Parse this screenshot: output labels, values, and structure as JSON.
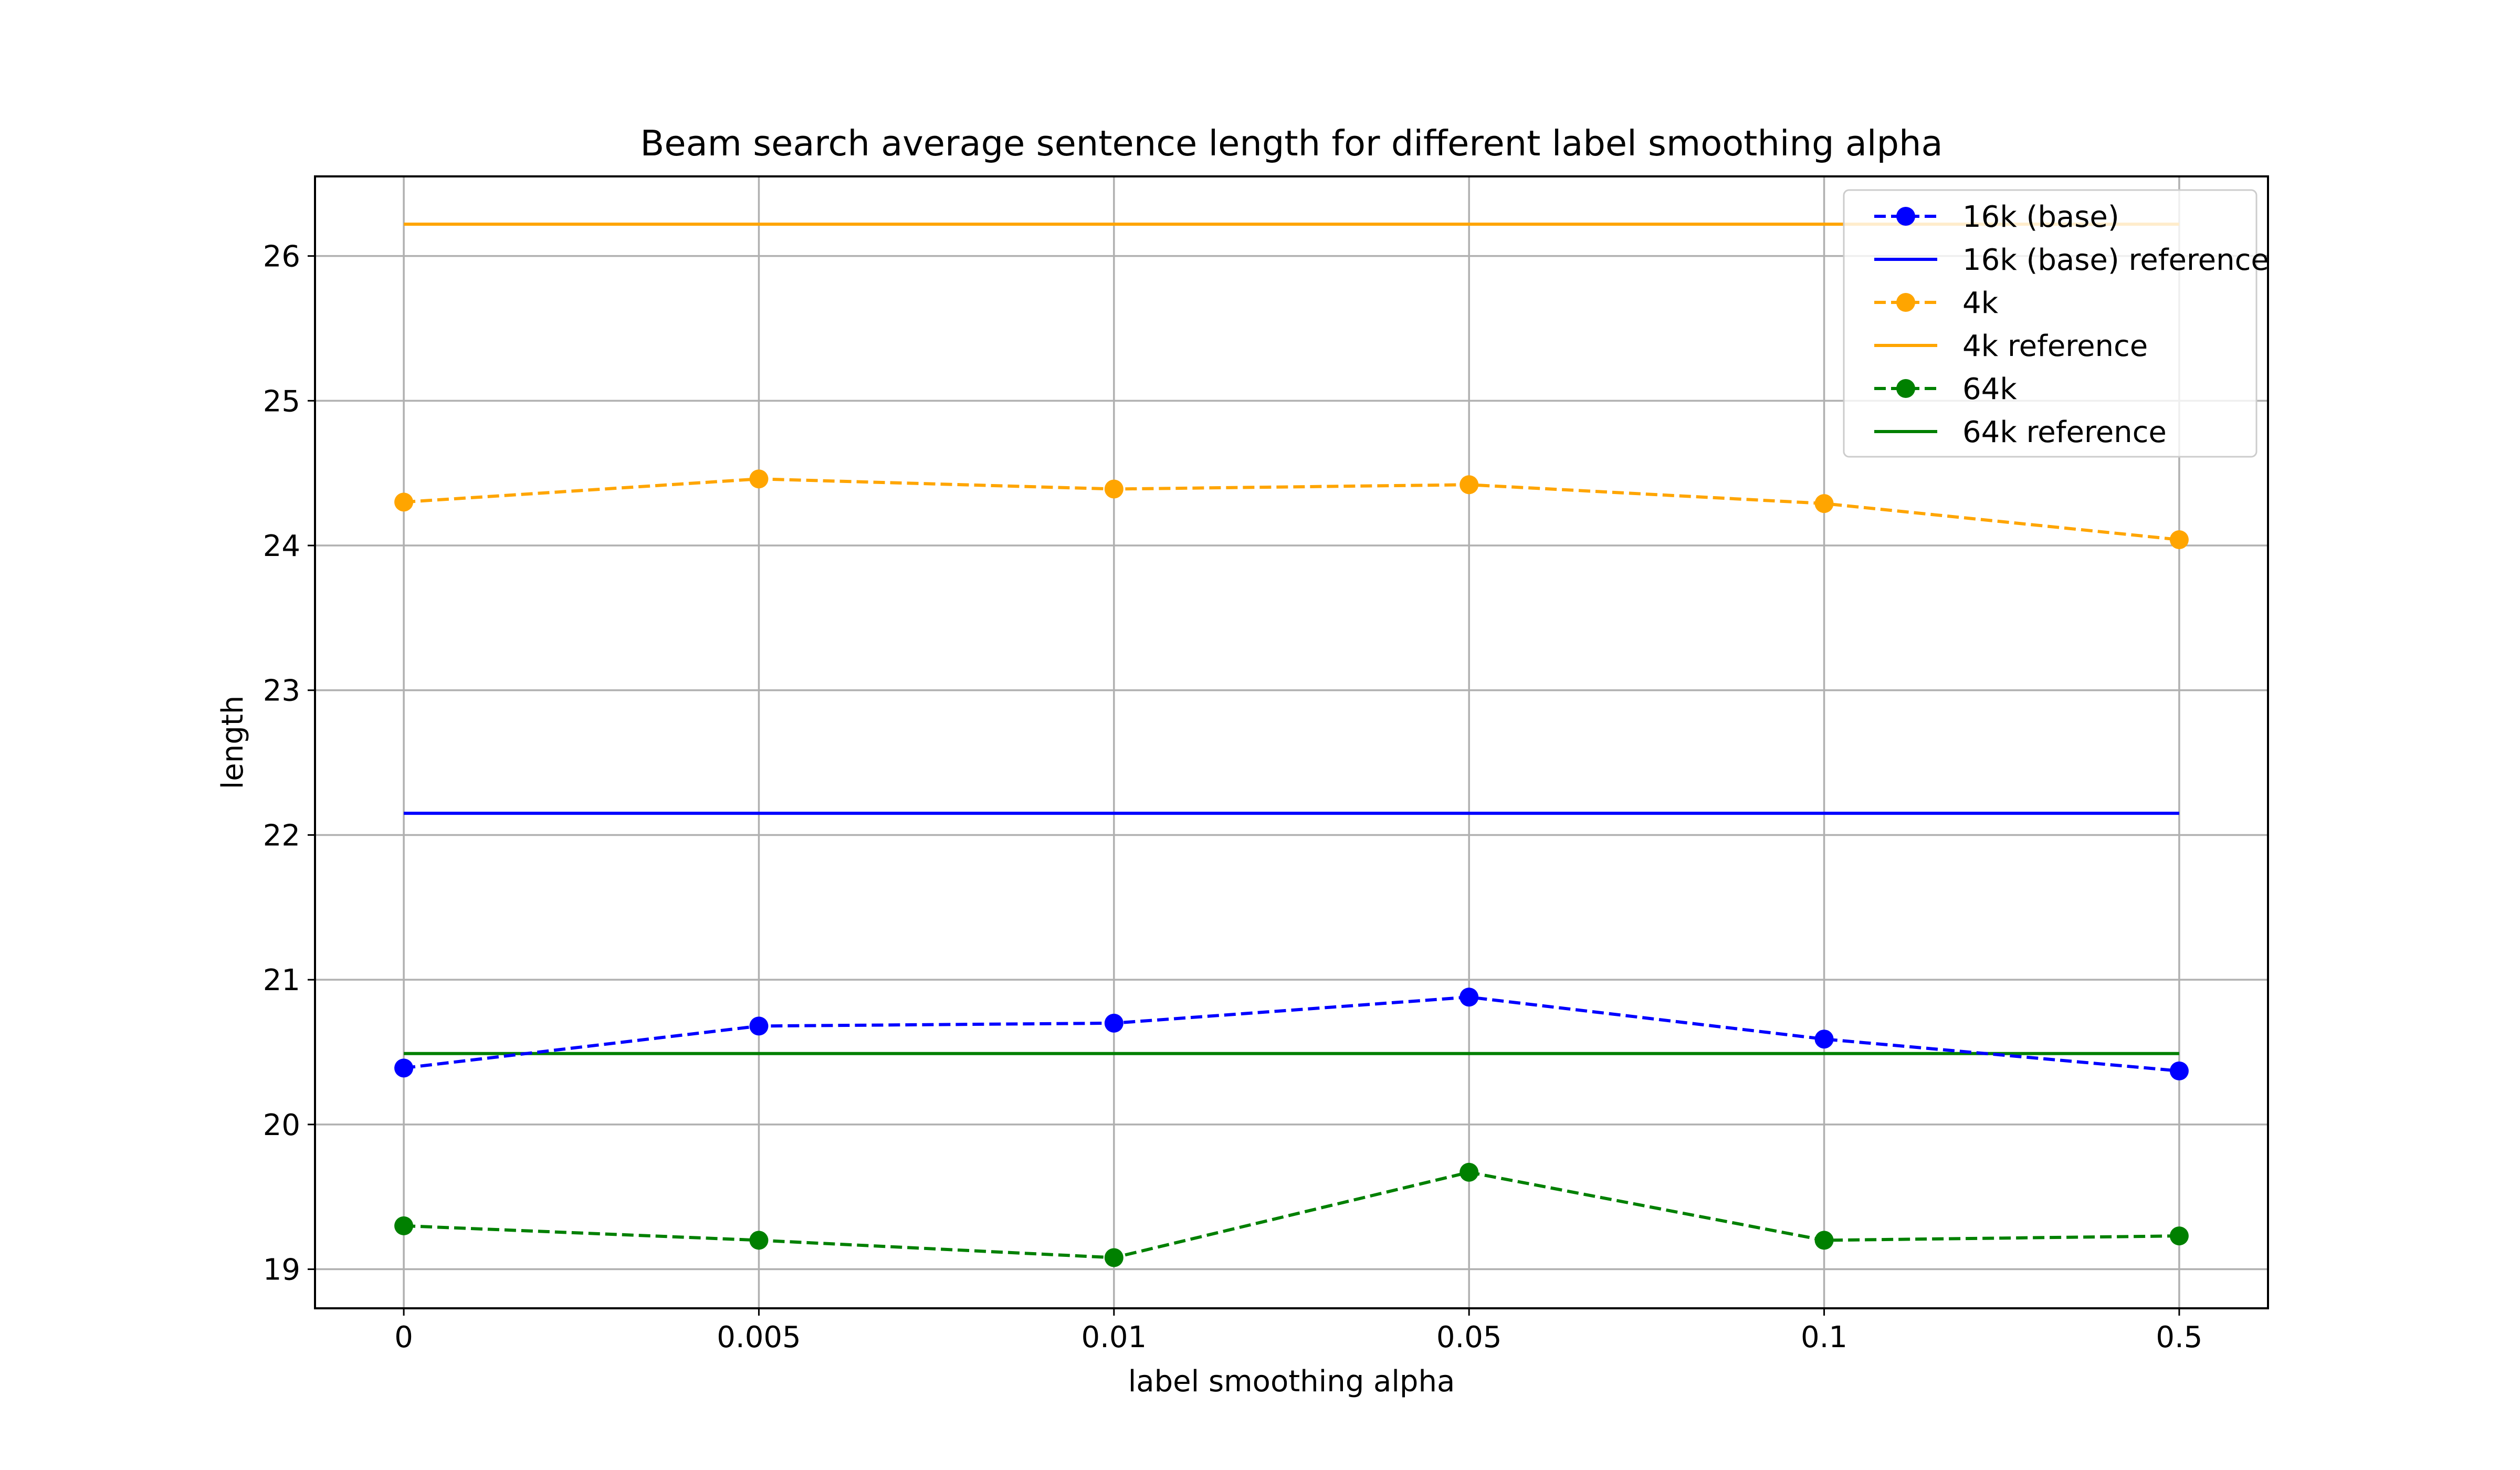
{
  "chart_data": {
    "type": "line",
    "title": "Beam search average sentence length for different label smoothing alpha",
    "xlabel": "label smoothing alpha",
    "ylabel": "length",
    "categories": [
      "0",
      "0.005",
      "0.01",
      "0.05",
      "0.1",
      "0.5"
    ],
    "xlim": [
      -0.25,
      5.25
    ],
    "ylim": [
      18.73,
      26.55
    ],
    "yticks": [
      "19",
      "20",
      "21",
      "22",
      "23",
      "24",
      "25",
      "26"
    ],
    "grid": true,
    "legend_position": "top-right",
    "series": [
      {
        "name": "16k (base)",
        "kind": "dashed-marker",
        "color": "#0000ff",
        "values": [
          20.39,
          20.68,
          20.7,
          20.88,
          20.59,
          20.37
        ]
      },
      {
        "name": "16k (base) reference",
        "kind": "solid",
        "color": "#0000ff",
        "values": [
          22.15,
          22.15,
          22.15,
          22.15,
          22.15,
          22.15
        ]
      },
      {
        "name": "4k",
        "kind": "dashed-marker",
        "color": "#ffa500",
        "values": [
          24.3,
          24.46,
          24.39,
          24.42,
          24.29,
          24.04
        ]
      },
      {
        "name": "4k reference",
        "kind": "solid",
        "color": "#ffa500",
        "values": [
          26.22,
          26.22,
          26.22,
          26.22,
          26.22,
          26.22
        ]
      },
      {
        "name": "64k",
        "kind": "dashed-marker",
        "color": "#008000",
        "values": [
          19.3,
          19.2,
          19.08,
          19.67,
          19.2,
          19.23
        ]
      },
      {
        "name": "64k reference",
        "kind": "solid",
        "color": "#008000",
        "values": [
          20.49,
          20.49,
          20.49,
          20.49,
          20.49,
          20.49
        ]
      }
    ]
  }
}
